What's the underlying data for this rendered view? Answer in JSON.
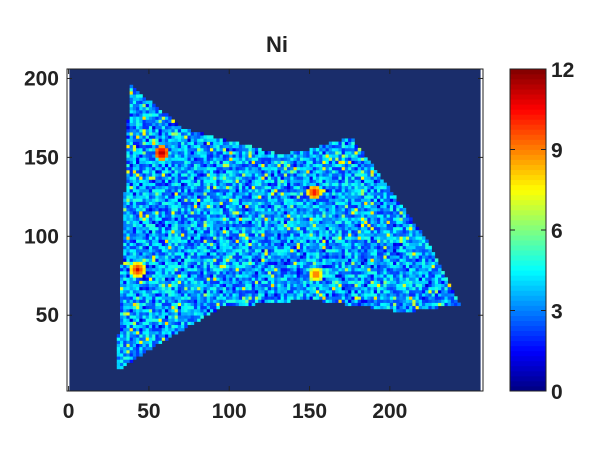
{
  "chart_data": {
    "type": "heatmap",
    "title": "Ni",
    "xlabel": "",
    "ylabel": "",
    "xlim": [
      -1,
      258
    ],
    "ylim": [
      2,
      206
    ],
    "x_ticks": [
      0,
      50,
      100,
      150,
      200
    ],
    "x_tick_labels": [
      "0",
      "50",
      "100",
      "150",
      "200"
    ],
    "y_ticks": [
      50,
      100,
      150,
      200
    ],
    "y_tick_labels": [
      "50",
      "100",
      "150",
      "200"
    ],
    "colorbar": {
      "colormap": "jet",
      "range": [
        0,
        12
      ],
      "ticks": [
        0,
        3,
        6,
        9,
        12
      ],
      "tick_labels": [
        "0",
        "3",
        "6",
        "9",
        "12"
      ]
    },
    "background_value": 0,
    "region_polygon": [
      [
        30,
        15
      ],
      [
        38,
        196
      ],
      [
        72,
        168
      ],
      [
        132,
        152
      ],
      [
        150,
        155
      ],
      [
        176,
        163
      ],
      [
        200,
        130
      ],
      [
        225,
        95
      ],
      [
        244,
        57
      ],
      [
        210,
        52
      ],
      [
        150,
        60
      ],
      [
        95,
        55
      ],
      [
        50,
        28
      ]
    ],
    "typical_value_range": [
      2,
      5
    ],
    "hotspots": [
      {
        "x": 57,
        "y": 152,
        "value": 12
      },
      {
        "x": 152,
        "y": 127,
        "value": 11
      },
      {
        "x": 153,
        "y": 75,
        "value": 10
      },
      {
        "x": 42,
        "y": 78,
        "value": 11
      }
    ]
  },
  "colors": {
    "background": "#ffffff",
    "axes_face": "#1a2d6b",
    "frame": "#222222"
  }
}
